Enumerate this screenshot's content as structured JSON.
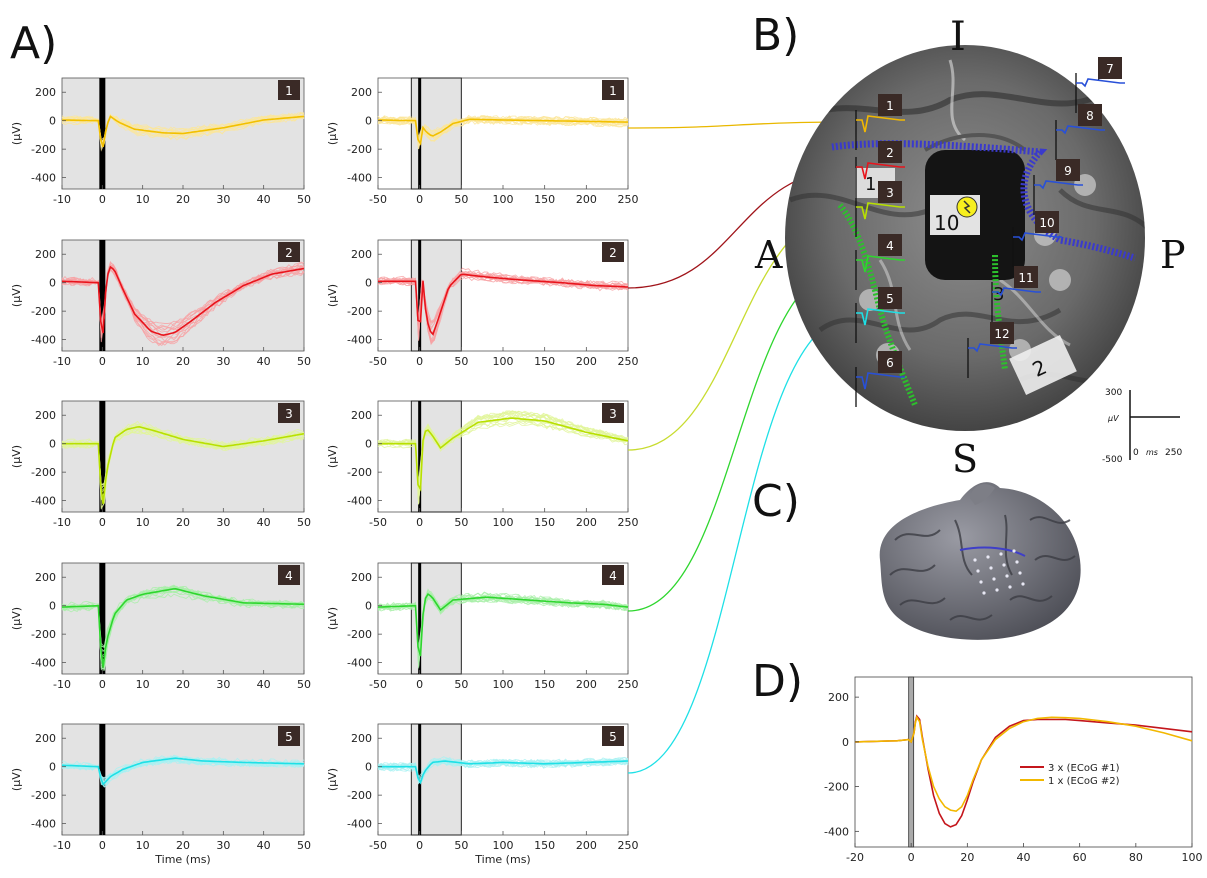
{
  "panel_labels": {
    "A": "A)",
    "B": "B)",
    "C": "C)",
    "D": "D)"
  },
  "panel_a": {
    "ylabel": "(µV)",
    "xlabel": "Time (ms)",
    "y_ticks": [
      "200",
      "0",
      "-200",
      "-400"
    ],
    "ylim": [
      -480,
      300
    ],
    "left_x_ticks": [
      "-10",
      "0",
      "10",
      "20",
      "30",
      "40",
      "50"
    ],
    "left_xlim": [
      -10,
      50
    ],
    "right_x_ticks": [
      "-50",
      "0",
      "50",
      "100",
      "150",
      "200",
      "250"
    ],
    "right_xlim": [
      -50,
      250
    ],
    "rows": [
      {
        "badge": "1",
        "color": "#f2c000",
        "dark": "#b58c00",
        "light": "#fbe69a"
      },
      {
        "badge": "2",
        "color": "#e8141c",
        "dark": "#8a0c10",
        "light": "#f7a0a3"
      },
      {
        "badge": "3",
        "color": "#b8e000",
        "dark": "#7a9800",
        "light": "#e1f59a"
      },
      {
        "badge": "4",
        "color": "#2ed62e",
        "dark": "#149414",
        "light": "#a8efa8"
      },
      {
        "badge": "5",
        "color": "#1ee0e6",
        "dark": "#0a9aa0",
        "light": "#a6f1f3"
      }
    ]
  },
  "panel_b": {
    "orientation": {
      "top": "I",
      "left": "A",
      "right": "P",
      "bottom": "S"
    },
    "electrode_numbers": [
      "1",
      "2",
      "3",
      "4",
      "5",
      "6",
      "7",
      "8",
      "9",
      "10",
      "11",
      "12"
    ],
    "region_labels": [
      "1",
      "3",
      "2"
    ],
    "stim_label": "10",
    "scale_bar": {
      "y_top": "300",
      "y_bottom": "-500",
      "y_unit": "µV",
      "x_start": "0",
      "x_unit": "ms",
      "x_end": "250"
    }
  },
  "panel_d": {
    "chart_data": {
      "type": "line",
      "xlim": [
        -20,
        100
      ],
      "ylim": [
        -470,
        290
      ],
      "x_ticks": [
        "-20",
        "0",
        "20",
        "40",
        "60",
        "80",
        "100"
      ],
      "y_ticks": [
        "200",
        "0",
        "-200",
        "-400"
      ],
      "legend_position": "center-right",
      "series": [
        {
          "name": "3 x (ECoG #1)",
          "color": "#c4161c",
          "x": [
            -20,
            -5,
            -1,
            0,
            1,
            1.5,
            2,
            3,
            4,
            6,
            8,
            10,
            12,
            14,
            16,
            18,
            20,
            22,
            25,
            30,
            35,
            40,
            45,
            50,
            55,
            60,
            70,
            80,
            90,
            100
          ],
          "y": [
            0,
            5,
            10,
            0,
            40,
            90,
            115,
            100,
            20,
            -120,
            -240,
            -320,
            -365,
            -380,
            -370,
            -330,
            -260,
            -180,
            -80,
            20,
            70,
            95,
            100,
            100,
            100,
            95,
            85,
            75,
            60,
            45
          ]
        },
        {
          "name": "1 x (ECoG #2)",
          "color": "#f2b800",
          "x": [
            -20,
            -5,
            -1,
            0,
            1,
            1.5,
            2,
            3,
            4,
            6,
            8,
            10,
            12,
            14,
            16,
            18,
            20,
            22,
            25,
            30,
            35,
            40,
            45,
            50,
            55,
            60,
            70,
            80,
            90,
            100
          ],
          "y": [
            0,
            5,
            10,
            0,
            40,
            85,
            110,
            90,
            10,
            -110,
            -200,
            -255,
            -290,
            -305,
            -310,
            -290,
            -240,
            -170,
            -80,
            10,
            60,
            90,
            105,
            110,
            108,
            105,
            90,
            70,
            40,
            5
          ]
        }
      ]
    }
  }
}
